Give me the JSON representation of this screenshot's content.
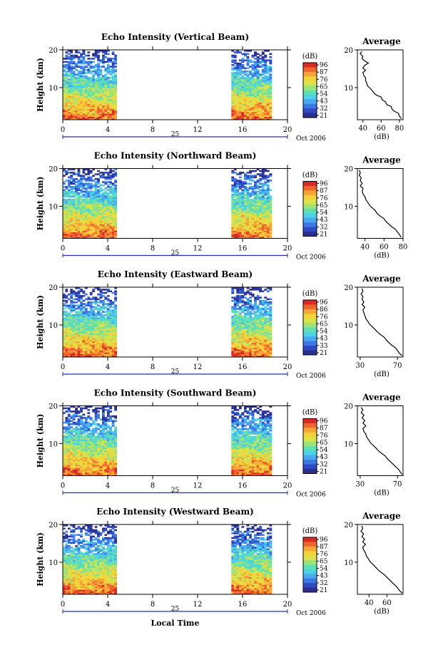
{
  "chart_data": [
    {
      "type": "heatmap",
      "title": "Echo Intensity (Vertical Beam)",
      "ylabel": "Height (km)",
      "xlim": [
        0,
        20
      ],
      "ylim": [
        1.5,
        20
      ],
      "xticks": [
        "0",
        "4",
        "8",
        "12",
        "16",
        "20"
      ],
      "yticks": [
        "20",
        "10"
      ],
      "data_x_ranges": [
        [
          0,
          4.8
        ],
        [
          15,
          18.6
        ]
      ],
      "date_label": "25",
      "date_suffix": "Oct 2006",
      "colorbar": {
        "label": "(dB)",
        "ticks": [
          "96",
          "87",
          "76",
          "65",
          "54",
          "43",
          "32",
          "21"
        ]
      },
      "average_profile": {
        "title": "Average",
        "xlabel": "(dB)",
        "xlim": [
          34,
          84
        ],
        "xticks": [
          "40",
          "60",
          "80"
        ],
        "yticks": [
          "20",
          "10"
        ],
        "points": [
          [
            82,
            1.8
          ],
          [
            80,
            2.5
          ],
          [
            79,
            3.2
          ],
          [
            74,
            3.8
          ],
          [
            72,
            4.3
          ],
          [
            71,
            5
          ],
          [
            66,
            5.5
          ],
          [
            65,
            6.2
          ],
          [
            61,
            6.8
          ],
          [
            60,
            7.5
          ],
          [
            55,
            8
          ],
          [
            52,
            8.6
          ],
          [
            50,
            9.3
          ],
          [
            48,
            9.8
          ],
          [
            45,
            10.5
          ],
          [
            44,
            11.3
          ],
          [
            43,
            11.9
          ],
          [
            43,
            12.6
          ],
          [
            41,
            13.2
          ],
          [
            40,
            14
          ],
          [
            43,
            14.6
          ],
          [
            40,
            15.2
          ],
          [
            42,
            15.9
          ],
          [
            46,
            16.5
          ],
          [
            41,
            17.2
          ],
          [
            39,
            17.8
          ],
          [
            40,
            18.3
          ],
          [
            37,
            19
          ],
          [
            39,
            19.6
          ]
        ]
      }
    },
    {
      "type": "heatmap",
      "title": "Echo Intensity (Northward Beam)",
      "ylabel": "Height (km)",
      "xlim": [
        0,
        20
      ],
      "ylim": [
        1.5,
        20
      ],
      "xticks": [
        "0",
        "4",
        "8",
        "12",
        "16",
        "20"
      ],
      "yticks": [
        "20",
        "10"
      ],
      "data_x_ranges": [
        [
          0,
          4.8
        ],
        [
          15,
          18.6
        ]
      ],
      "date_label": "25",
      "date_suffix": "Oct 2006",
      "colorbar": {
        "label": "(dB)",
        "ticks": [
          "96",
          "87",
          "76",
          "65",
          "54",
          "43",
          "32",
          "21"
        ]
      },
      "average_profile": {
        "title": "Average",
        "xlabel": "(dB)",
        "xlim": [
          32,
          80
        ],
        "xticks": [
          "40",
          "60",
          "80"
        ],
        "yticks": [
          "20",
          "10"
        ],
        "points": [
          [
            78,
            1.8
          ],
          [
            76,
            2.6
          ],
          [
            74,
            3.2
          ],
          [
            72,
            3.9
          ],
          [
            68,
            4.6
          ],
          [
            65,
            5.3
          ],
          [
            62,
            6
          ],
          [
            60,
            6.7
          ],
          [
            56,
            7.4
          ],
          [
            53,
            8
          ],
          [
            51,
            8.8
          ],
          [
            48,
            9.5
          ],
          [
            45,
            10.2
          ],
          [
            43,
            11
          ],
          [
            41,
            11.7
          ],
          [
            40,
            12.5
          ],
          [
            38,
            13.2
          ],
          [
            37,
            14
          ],
          [
            38,
            14.7
          ],
          [
            35,
            15.4
          ],
          [
            37,
            16.1
          ],
          [
            35,
            16.8
          ],
          [
            36,
            17.5
          ],
          [
            34,
            18.2
          ],
          [
            35,
            18.9
          ],
          [
            34,
            19.6
          ]
        ]
      }
    },
    {
      "type": "heatmap",
      "title": "Echo Intensity (Eastward Beam)",
      "ylabel": "Height (km)",
      "xlim": [
        0,
        20
      ],
      "ylim": [
        1.5,
        20
      ],
      "xticks": [
        "0",
        "4",
        "8",
        "12",
        "16",
        "20"
      ],
      "yticks": [
        "20",
        "10"
      ],
      "data_x_ranges": [
        [
          0,
          4.8
        ],
        [
          15,
          18.6
        ]
      ],
      "date_label": "25",
      "date_suffix": "Oct 2006",
      "colorbar": {
        "label": "(dB)",
        "ticks": [
          "96",
          "86",
          "76",
          "65",
          "54",
          "43",
          "33",
          "21"
        ]
      },
      "average_profile": {
        "title": "Average",
        "xlabel": "(dB)",
        "xlim": [
          27,
          76
        ],
        "xticks": [
          "30",
          "70"
        ],
        "yticks": [
          "20",
          "10"
        ],
        "points": [
          [
            75,
            1.8
          ],
          [
            72,
            2.5
          ],
          [
            70,
            3.2
          ],
          [
            68,
            3.9
          ],
          [
            64,
            4.6
          ],
          [
            61,
            5.3
          ],
          [
            58,
            6
          ],
          [
            56,
            6.7
          ],
          [
            52,
            7.4
          ],
          [
            49,
            8
          ],
          [
            46,
            8.8
          ],
          [
            43,
            9.5
          ],
          [
            40,
            10.2
          ],
          [
            38,
            11
          ],
          [
            36,
            11.7
          ],
          [
            35,
            12.5
          ],
          [
            34,
            13.2
          ],
          [
            33,
            14
          ],
          [
            35,
            14.7
          ],
          [
            32,
            15.4
          ],
          [
            34,
            16.1
          ],
          [
            32,
            16.8
          ],
          [
            33,
            17.5
          ],
          [
            31,
            18.2
          ],
          [
            33,
            18.9
          ],
          [
            32,
            19.6
          ]
        ]
      }
    },
    {
      "type": "heatmap",
      "title": "Echo Intensity (Southward Beam)",
      "ylabel": "Height (km)",
      "xlim": [
        0,
        20
      ],
      "ylim": [
        1.5,
        20
      ],
      "xticks": [
        "0",
        "4",
        "8",
        "12",
        "16",
        "20"
      ],
      "yticks": [
        "20",
        "10"
      ],
      "data_x_ranges": [
        [
          0,
          4.8
        ],
        [
          15,
          18.6
        ]
      ],
      "date_label": "25",
      "date_suffix": "Oct 2006",
      "colorbar": {
        "label": "(dB)",
        "ticks": [
          "96",
          "87",
          "76",
          "65",
          "54",
          "43",
          "32",
          "21"
        ]
      },
      "average_profile": {
        "title": "Average",
        "xlabel": "(dB)",
        "xlim": [
          27,
          76
        ],
        "xticks": [
          "30",
          "70"
        ],
        "yticks": [
          "20",
          "10"
        ],
        "points": [
          [
            75,
            1.8
          ],
          [
            73,
            2.5
          ],
          [
            71,
            3.2
          ],
          [
            68,
            3.9
          ],
          [
            65,
            4.6
          ],
          [
            62,
            5.3
          ],
          [
            59,
            6
          ],
          [
            57,
            6.7
          ],
          [
            53,
            7.4
          ],
          [
            50,
            8
          ],
          [
            47,
            8.8
          ],
          [
            44,
            9.5
          ],
          [
            41,
            10.2
          ],
          [
            39,
            11
          ],
          [
            37,
            11.7
          ],
          [
            36,
            12.5
          ],
          [
            34,
            13.2
          ],
          [
            33,
            14
          ],
          [
            36,
            14.7
          ],
          [
            33,
            15.4
          ],
          [
            35,
            16.1
          ],
          [
            32,
            16.8
          ],
          [
            34,
            17.5
          ],
          [
            31,
            18.2
          ],
          [
            33,
            18.9
          ],
          [
            31,
            19.6
          ]
        ]
      }
    },
    {
      "type": "heatmap",
      "title": "Echo Intensity (Westward Beam)",
      "ylabel": "Height (km)",
      "xlabel": "Local Time",
      "xlim": [
        0,
        20
      ],
      "ylim": [
        1.5,
        20
      ],
      "xticks": [
        "0",
        "4",
        "8",
        "12",
        "16",
        "20"
      ],
      "yticks": [
        "20",
        "10"
      ],
      "data_x_ranges": [
        [
          0,
          4.8
        ],
        [
          15,
          18.6
        ]
      ],
      "date_label": "25",
      "date_suffix": "Oct 2006",
      "colorbar": {
        "label": "(dB)",
        "ticks": [
          "96",
          "87",
          "76",
          "65",
          "54",
          "43",
          "32",
          "21"
        ]
      },
      "average_profile": {
        "title": "Average",
        "xlabel": "(dB)",
        "xlim": [
          27,
          78
        ],
        "xticks": [
          "40",
          "60"
        ],
        "yticks": [
          "20",
          "10"
        ],
        "points": [
          [
            77,
            1.8
          ],
          [
            74,
            2.5
          ],
          [
            72,
            3.2
          ],
          [
            69,
            3.9
          ],
          [
            66,
            4.6
          ],
          [
            63,
            5.3
          ],
          [
            60,
            6
          ],
          [
            57,
            6.7
          ],
          [
            53,
            7.4
          ],
          [
            50,
            8
          ],
          [
            47,
            8.8
          ],
          [
            44,
            9.5
          ],
          [
            41,
            10.2
          ],
          [
            39,
            11
          ],
          [
            37,
            11.7
          ],
          [
            36,
            12.5
          ],
          [
            34,
            13.2
          ],
          [
            33,
            14
          ],
          [
            36,
            14.7
          ],
          [
            33,
            15.4
          ],
          [
            35,
            16.1
          ],
          [
            32,
            16.8
          ],
          [
            34,
            17.5
          ],
          [
            31,
            18.2
          ],
          [
            33,
            18.9
          ],
          [
            32,
            19.6
          ]
        ]
      }
    }
  ]
}
